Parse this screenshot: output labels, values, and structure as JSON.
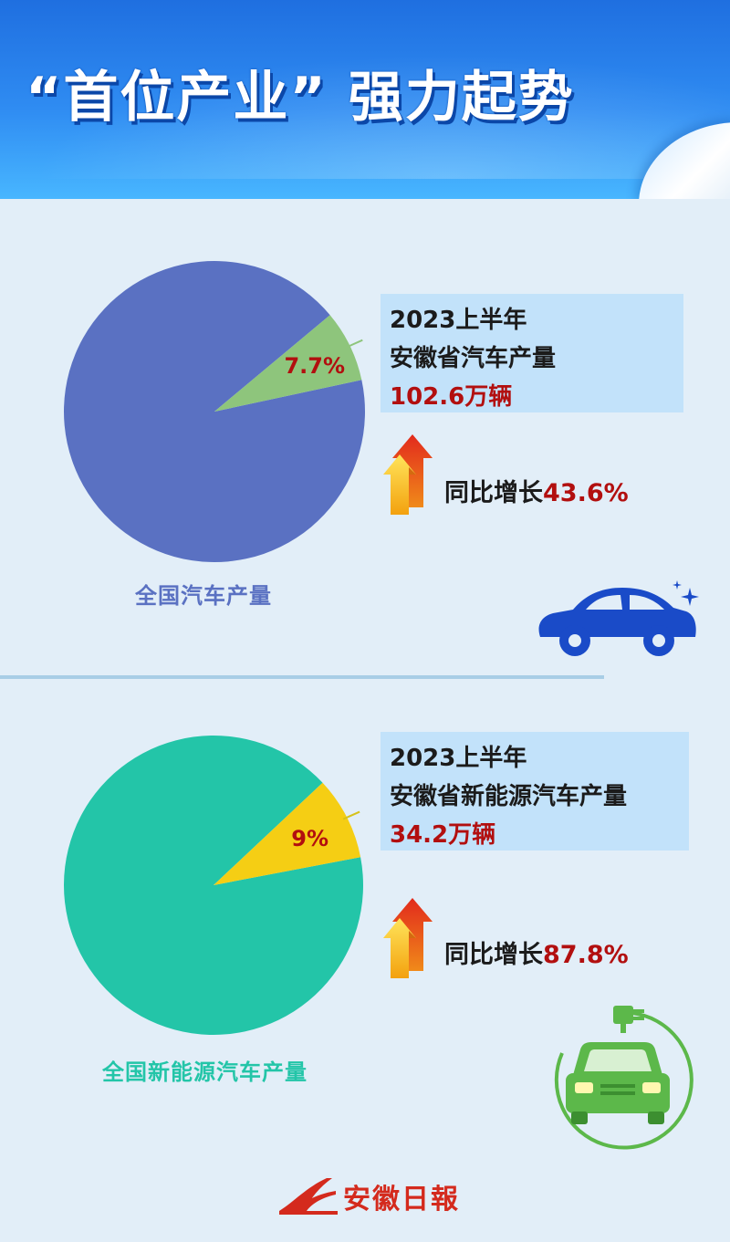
{
  "header": {
    "title": "“首位产业” 强力起势"
  },
  "colors": {
    "pie1_main": "#5a71c2",
    "pie1_slice": "#8ec57c",
    "pie2_main": "#23c5a8",
    "pie2_slice": "#f5ce14",
    "value_red": "#b20f0f",
    "caption1": "#5a71c2",
    "caption2": "#23c5a8"
  },
  "chart_data": [
    {
      "type": "pie",
      "caption": "全国汽车产量",
      "slices": [
        {
          "label": "7.7%",
          "value": 7.7
        },
        {
          "label": "",
          "value": 92.3
        }
      ],
      "info": {
        "line1": "2023上半年",
        "line2": "安徽省汽车产量",
        "value": "102.6万辆"
      },
      "growth": {
        "label": "同比增长",
        "value": "43.6%"
      }
    },
    {
      "type": "pie",
      "caption": "全国新能源汽车产量",
      "slices": [
        {
          "label": "9%",
          "value": 9
        },
        {
          "label": "",
          "value": 91
        }
      ],
      "info": {
        "line1": "2023上半年",
        "line2": "安徽省新能源汽车产量",
        "value": "34.2万辆"
      },
      "growth": {
        "label": "同比增长",
        "value": "87.8%"
      }
    }
  ],
  "icons": {
    "arrows": "growth-arrows-icon",
    "car": "car-icon",
    "ev": "electric-car-icon",
    "logo": "newspaper-logo-icon"
  },
  "footer": {
    "logo_text": "安徽日報"
  }
}
